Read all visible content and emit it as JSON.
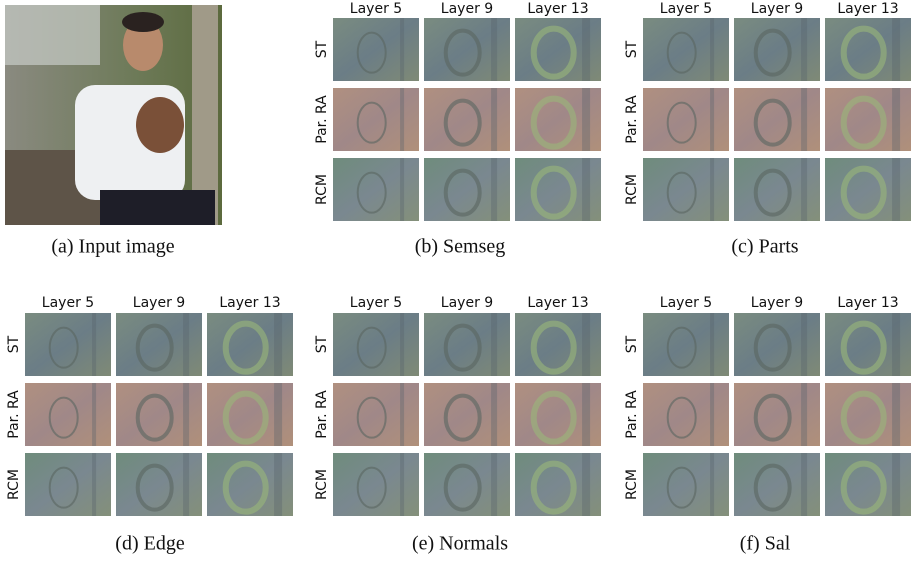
{
  "panels": [
    {
      "caption": "(a) Input image"
    },
    {
      "caption": "(b) Semseg",
      "columns": [
        "Layer 5",
        "Layer 9",
        "Layer 13"
      ],
      "rows": [
        "ST",
        "Par. RA",
        "RCM"
      ]
    },
    {
      "caption": "(c) Parts",
      "columns": [
        "Layer 5",
        "Layer 9",
        "Layer 13"
      ],
      "rows": [
        "ST",
        "Par. RA",
        "RCM"
      ]
    },
    {
      "caption": "(d) Edge",
      "columns": [
        "Layer 5",
        "Layer 9",
        "Layer 13"
      ],
      "rows": [
        "ST",
        "Par. RA",
        "RCM"
      ]
    },
    {
      "caption": "(e) Normals",
      "columns": [
        "Layer 5",
        "Layer 9",
        "Layer 13"
      ],
      "rows": [
        "ST",
        "Par. RA",
        "RCM"
      ]
    },
    {
      "caption": "(f) Sal",
      "columns": [
        "Layer 5",
        "Layer 9",
        "Layer 13"
      ],
      "rows": [
        "ST",
        "Par. RA",
        "RCM"
      ]
    }
  ]
}
